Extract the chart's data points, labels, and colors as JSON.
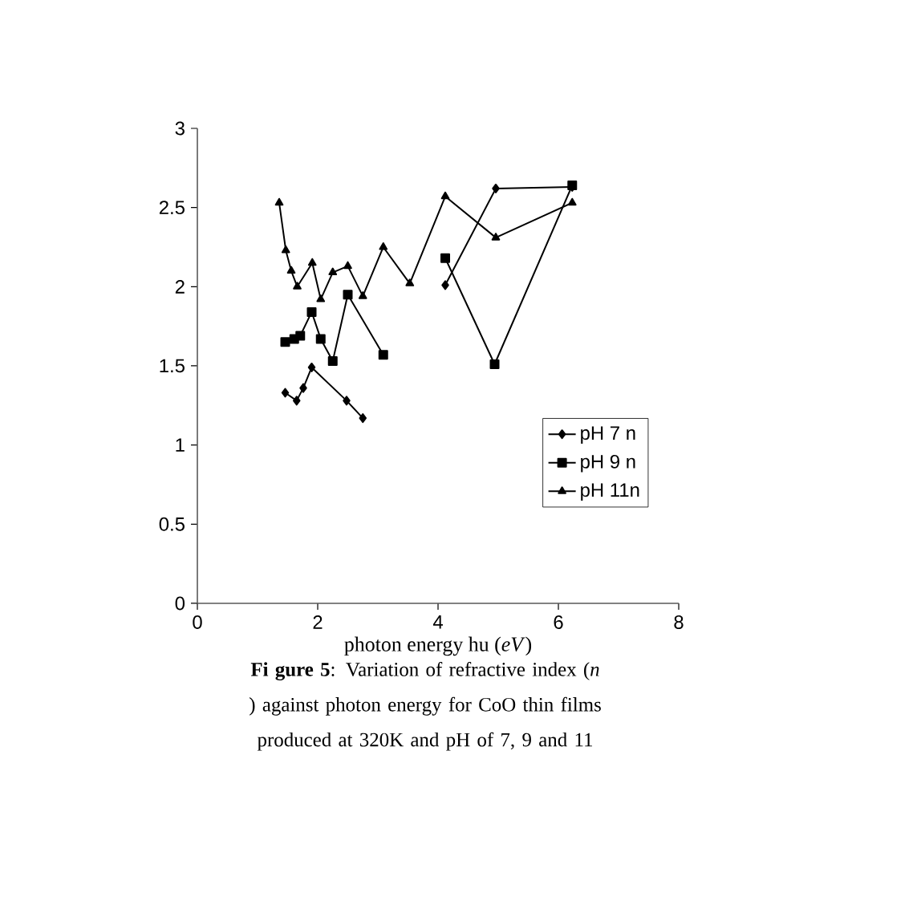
{
  "chart_data": {
    "type": "line",
    "xlabel": "photon energy hu (*eV*)",
    "annotations": [
      "**Fi gure 5**: Variation of refractive index (*n* ) against photon energy for CoO  thin films produced at 320K and pH of 7, 9 and 11"
    ],
    "xlim": [
      0,
      8
    ],
    "xticks": [
      0,
      2,
      4,
      6,
      8
    ],
    "ylim": [
      0,
      3
    ],
    "yticks": [
      0,
      0.5,
      1,
      1.5,
      2,
      2.5,
      3
    ],
    "legend": "right",
    "grid": false,
    "line_style": "solid",
    "series": [
      {
        "name": "pH 7 n",
        "color": "#000000",
        "marker": "diamond",
        "x": [
          1.46,
          1.65,
          1.76,
          1.9,
          2.48,
          2.75,
          3.4,
          4.12,
          4.96,
          6.23
        ],
        "values": [
          1.33,
          1.28,
          1.36,
          1.49,
          1.28,
          1.17,
          null,
          2.01,
          2.62,
          2.63
        ]
      },
      {
        "name": "pH 9 n",
        "color": "#000000",
        "marker": "square",
        "x": [
          1.46,
          1.61,
          1.71,
          1.9,
          2.05,
          2.25,
          2.5,
          3.09,
          3.6,
          4.12,
          4.94,
          6.23
        ],
        "values": [
          1.65,
          1.67,
          1.69,
          1.84,
          1.67,
          1.53,
          1.95,
          1.57,
          null,
          2.18,
          1.51,
          2.64
        ]
      },
      {
        "name": "pH 11n",
        "color": "#000000",
        "marker": "triangle",
        "x": [
          1.36,
          1.47,
          1.56,
          1.66,
          1.91,
          2.05,
          2.25,
          2.5,
          2.75,
          3.09,
          3.53,
          4.12,
          4.96,
          6.23
        ],
        "values": [
          2.53,
          2.23,
          2.1,
          2.0,
          2.15,
          1.92,
          2.09,
          2.13,
          1.94,
          2.25,
          2.02,
          2.57,
          2.31,
          2.53
        ]
      }
    ]
  }
}
